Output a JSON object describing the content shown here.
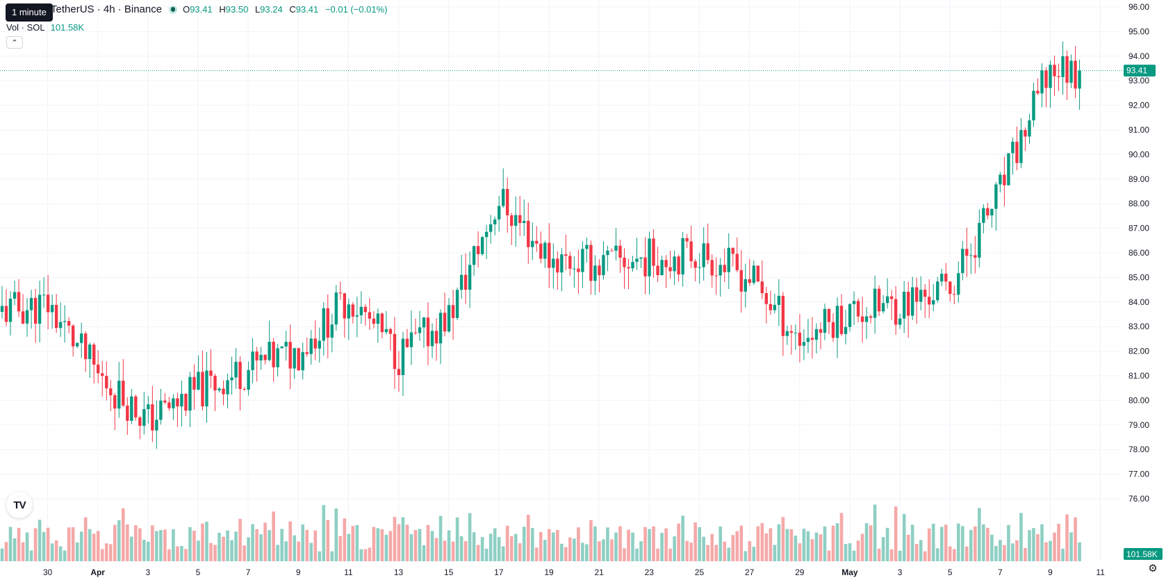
{
  "header": {
    "tooltip": "1 minute",
    "symbol_text": "TetherUS · 4h · Binance",
    "ohlc": {
      "o_label": "O",
      "o": "93.41",
      "h_label": "H",
      "h": "93.50",
      "l_label": "L",
      "l": "93.24",
      "c_label": "C",
      "c": "93.41",
      "change": "−0.01 (−0.01%)"
    },
    "volume_label": "Vol · SOL",
    "volume_value": "101.58K",
    "collapse_icon": "chevron-up-icon"
  },
  "badges": {
    "last_price": "93.41",
    "last_volume": "101.58K"
  },
  "icons": {
    "logo": "tradingview-logo-icon",
    "settings": "gear-icon"
  },
  "colors": {
    "up": "#089981",
    "down": "#f23645",
    "volume_up": "#8ecfc3",
    "volume_down": "#f5a8a8",
    "grid": "#f0f3fa",
    "last_line": "#089981"
  },
  "chart_data": {
    "type": "candlestick",
    "interval": "4h",
    "y_axis": {
      "min": 76,
      "max": 96,
      "ticks": [
        "96.00",
        "95.00",
        "94.00",
        "93.00",
        "92.00",
        "91.00",
        "90.00",
        "89.00",
        "88.00",
        "87.00",
        "86.00",
        "85.00",
        "84.00",
        "83.00",
        "82.00",
        "81.00",
        "80.00",
        "79.00",
        "78.00",
        "77.00",
        "76.00"
      ]
    },
    "x_axis": {
      "ticks": [
        "30",
        "Apr",
        "3",
        "5",
        "7",
        "9",
        "11",
        "13",
        "15",
        "17",
        "19",
        "21",
        "23",
        "25",
        "27",
        "29",
        "May",
        "3",
        "5",
        "7",
        "9",
        "11"
      ]
    },
    "grid": true,
    "last_price": 93.41,
    "key_levels": [
      {
        "label": "30",
        "close": 83.9
      },
      {
        "label": "Apr",
        "close": 81.0
      },
      {
        "label": "3",
        "close": 79.2
      },
      {
        "label": "5",
        "close": 80.4
      },
      {
        "label": "7",
        "close": 81.3
      },
      {
        "label": "9",
        "close": 82.0
      },
      {
        "label": "11",
        "close": 84.2
      },
      {
        "label": "13",
        "close": 81.8
      },
      {
        "label": "15",
        "close": 83.4
      },
      {
        "label": "17",
        "close": 88.2
      },
      {
        "label": "19",
        "close": 85.8
      },
      {
        "label": "21",
        "close": 85.5
      },
      {
        "label": "23",
        "close": 85.8
      },
      {
        "label": "25",
        "close": 86.0
      },
      {
        "label": "27",
        "close": 85.0
      },
      {
        "label": "29",
        "close": 82.5
      },
      {
        "label": "May",
        "close": 83.6
      },
      {
        "label": "3",
        "close": 83.9
      },
      {
        "label": "5",
        "close": 84.6
      },
      {
        "label": "7",
        "close": 88.5
      },
      {
        "label": "9",
        "close": 93.5
      }
    ]
  }
}
